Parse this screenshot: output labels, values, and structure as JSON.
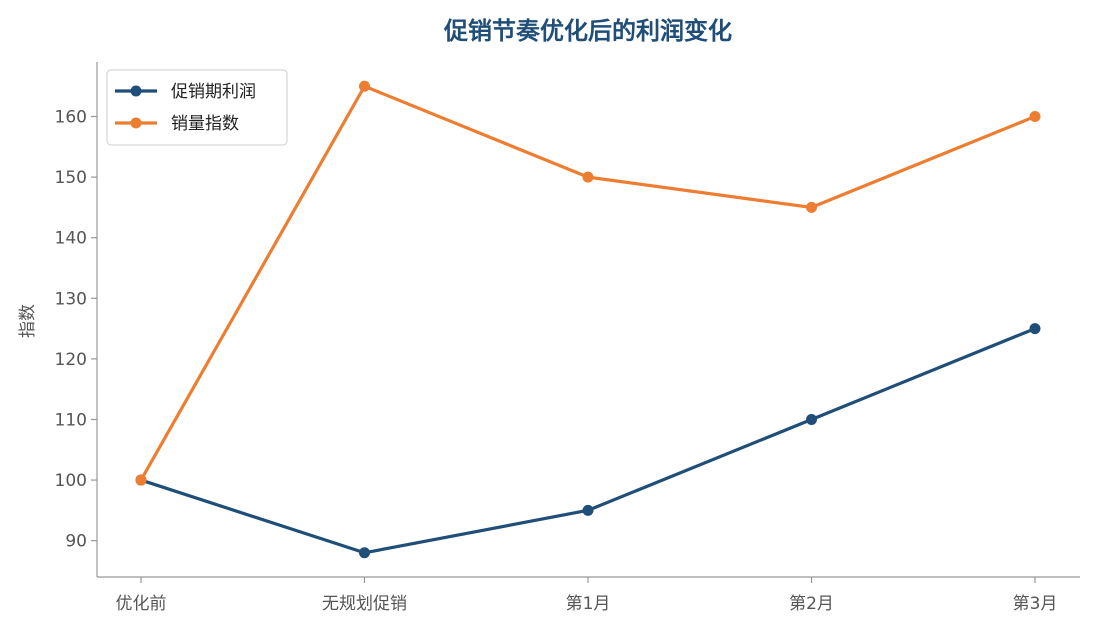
{
  "chart_data": {
    "type": "line",
    "title": "促销节奏优化后的利润变化",
    "xlabel": "",
    "ylabel": "指数",
    "categories": [
      "优化前",
      "无规划促销",
      "第1月",
      "第2月",
      "第3月"
    ],
    "ylim": [
      84,
      169
    ],
    "yticks": [
      90,
      100,
      110,
      120,
      130,
      140,
      150,
      160
    ],
    "grid": false,
    "legend_position": "top-left",
    "series": [
      {
        "name": "促销期利润",
        "color": "#1f4e79",
        "values": [
          100,
          88,
          95,
          110,
          125
        ]
      },
      {
        "name": "销量指数",
        "color": "#ed7d31",
        "values": [
          100,
          165,
          150,
          145,
          160
        ]
      }
    ]
  }
}
